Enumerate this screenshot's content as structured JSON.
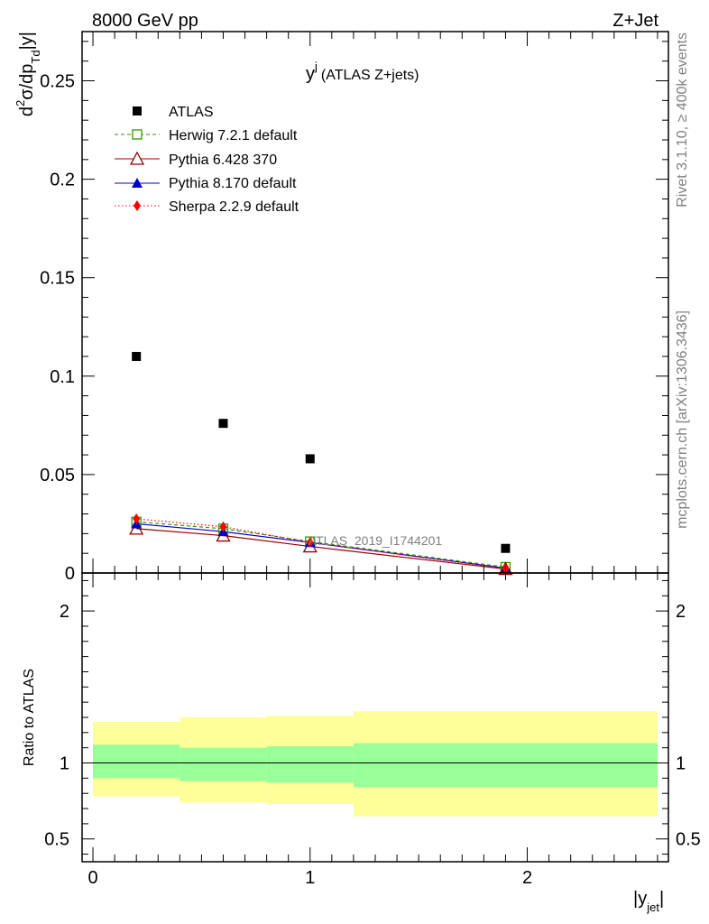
{
  "header": {
    "left": "8000 GeV pp",
    "right": "Z+Jet"
  },
  "side_labels": {
    "rivet": "Rivet 3.1.10, ≥ 400k events",
    "source": "mcplots.cern.ch [arXiv:1306.3436]"
  },
  "watermark": "ATLAS_2019_I1744201",
  "colors": {
    "atlas": "#000000",
    "herwig": "#339900",
    "pythia6": "#990000",
    "pythia8": "#0000cc",
    "sherpa": "#ff0000",
    "band_inner": "#99ff99",
    "band_outer": "#ffff99"
  },
  "chart_data": [
    {
      "type": "line",
      "panel": "main",
      "title_main": "y",
      "title_sup": "j",
      "title_rest": "(ATLAS Z+jets)",
      "ylabel": {
        "d": "d",
        "sup2": "2",
        "mid": "σ/dp",
        "sub": "Td",
        "tail": "|y|"
      },
      "xlim": [
        -0.05,
        2.65
      ],
      "ylim": [
        0,
        0.275
      ],
      "yticks": [
        0,
        0.05,
        0.1,
        0.15,
        0.2,
        0.25
      ],
      "ytick_labels": [
        "0",
        "0.05",
        "0.1",
        "0.15",
        "0.2",
        "0.25"
      ],
      "legend_position": "top-left",
      "x": [
        0.2,
        0.6,
        1.0,
        1.9
      ],
      "series": [
        {
          "name": "ATLAS",
          "style": "data",
          "marker": "square",
          "values": [
            0.11,
            0.076,
            0.058,
            0.0125
          ]
        },
        {
          "name": "Herwig 7.2.1 default",
          "style": "dashed",
          "marker": "open-square",
          "values": [
            0.026,
            0.0225,
            0.016,
            0.003
          ]
        },
        {
          "name": "Pythia 6.428 370",
          "style": "solid",
          "marker": "open-triangle",
          "values": [
            0.0225,
            0.019,
            0.0135,
            0.002
          ]
        },
        {
          "name": "Pythia 8.170 default",
          "style": "solid",
          "marker": "filled-triangle",
          "values": [
            0.025,
            0.021,
            0.0155,
            0.0025
          ]
        },
        {
          "name": "Sherpa 2.2.9 default",
          "style": "dotted",
          "marker": "diamond",
          "values": [
            0.0275,
            0.0235,
            0.0155,
            0.0022
          ]
        }
      ]
    },
    {
      "type": "area",
      "panel": "ratio",
      "ylabel": "Ratio to ATLAS",
      "xlabel": {
        "main": "|y",
        "sub": "jet",
        "tail": "|"
      },
      "xlim": [
        -0.05,
        2.65
      ],
      "ylim": [
        0.35,
        2.25
      ],
      "xticks": [
        0,
        1,
        2
      ],
      "xtick_labels": [
        "0",
        "1",
        "2"
      ],
      "yticks": [
        0.5,
        1,
        2
      ],
      "ytick_labels": [
        "0.5",
        "1",
        "2"
      ],
      "bins": [
        {
          "x_low": 0.0,
          "x_high": 0.4,
          "inner": [
            0.9,
            1.12
          ],
          "outer": [
            0.78,
            1.27
          ]
        },
        {
          "x_low": 0.4,
          "x_high": 0.8,
          "inner": [
            0.88,
            1.1
          ],
          "outer": [
            0.74,
            1.3
          ]
        },
        {
          "x_low": 0.8,
          "x_high": 1.2,
          "inner": [
            0.87,
            1.11
          ],
          "outer": [
            0.73,
            1.31
          ]
        },
        {
          "x_low": 1.2,
          "x_high": 2.6,
          "inner": [
            0.84,
            1.13
          ],
          "outer": [
            0.65,
            1.34
          ]
        }
      ],
      "reference_line": 1
    }
  ]
}
